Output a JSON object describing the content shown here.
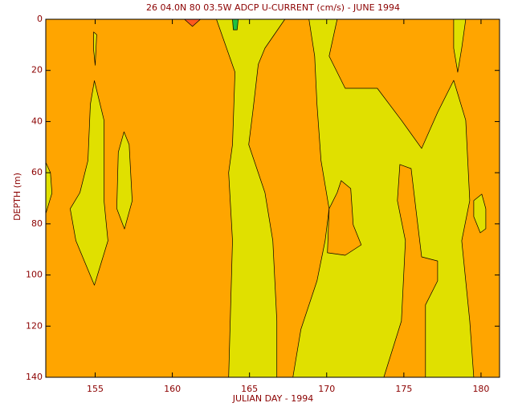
{
  "chart_data": {
    "type": "contour",
    "title": "26 04.0N 80 03.5W ADCP U-CURRENT (cm/s) - JUNE 1994",
    "x_label": "JULIAN DAY - 1994",
    "y_label": "DEPTH (m)",
    "xlim": [
      151.8,
      181.2
    ],
    "ylim": [
      0,
      140
    ],
    "y_inverted": true,
    "xticks": [
      155,
      160,
      165,
      170,
      175,
      180
    ],
    "yticks": [
      0,
      20,
      40,
      60,
      80,
      100,
      120,
      140
    ],
    "background_color": "#ffa500",
    "regions": [
      {
        "color": "#e0e000",
        "x": [
          151.8,
          152.1,
          152.2,
          151.8
        ],
        "y": [
          56,
          60,
          68,
          76
        ]
      },
      {
        "color": "#e0e000",
        "x": [
          154.95,
          155.57,
          155.57,
          155.83,
          154.95,
          153.75,
          153.38,
          154.01,
          154.53,
          154.69
        ],
        "y": [
          24,
          39.5,
          70.9,
          86.6,
          104,
          86.6,
          74.1,
          67.8,
          55.2,
          33.3
        ]
      },
      {
        "color": "#e0e000",
        "x": [
          154.9,
          155.1,
          155.0,
          154.9
        ],
        "y": [
          5,
          6,
          18,
          12
        ]
      },
      {
        "color": "#e0e000",
        "x": [
          156.87,
          157.2,
          157.4,
          156.9,
          156.4,
          156.5
        ],
        "y": [
          44,
          49,
          71,
          82,
          74,
          52
        ]
      },
      {
        "color": "#e0e000",
        "x": [
          162.86,
          167.29,
          166.0,
          165.57,
          165.21,
          164.95,
          166.0,
          166.51,
          166.77,
          166.77,
          163.65,
          163.9,
          163.65,
          163.9,
          164.06
        ],
        "y": [
          0,
          0,
          11.3,
          17.6,
          36.4,
          49,
          67.8,
          86.6,
          118,
          140,
          140,
          86.6,
          60,
          49,
          20.7
        ]
      },
      {
        "color": "#e0e000",
        "x": [
          168.85,
          170.68,
          170.16,
          171.2,
          173.28,
          174.84,
          176.15,
          177.19,
          178.23,
          179.01,
          179.27,
          178.75,
          179.27,
          179.53,
          167.81,
          168.33,
          169.37,
          169.9,
          170.16,
          169.63,
          169.37,
          169.22
        ],
        "y": [
          0,
          0,
          14.4,
          27,
          27,
          39.5,
          50.5,
          36.4,
          23.9,
          39.5,
          70.9,
          86.6,
          118,
          140,
          140,
          121.2,
          102.3,
          86.6,
          74.1,
          55.2,
          33.3,
          14.4
        ]
      },
      {
        "color": "#ffa500",
        "x": [
          174.74,
          175.47,
          175.78,
          176.15,
          177.19,
          177.19,
          176.4,
          176.4,
          173.7,
          174.84,
          175.1,
          174.58
        ],
        "y": [
          56.8,
          58.4,
          74.1,
          92.9,
          94.5,
          102.3,
          111.7,
          140,
          140,
          118,
          86.6,
          70.9
        ]
      },
      {
        "color": "#ffa500",
        "x": [
          170.94,
          171.56,
          171.72,
          172.24,
          171.2,
          170.05,
          170.16,
          170.68
        ],
        "y": [
          63.1,
          66.2,
          80.4,
          88.2,
          92.3,
          91.3,
          74.1,
          67.8
        ]
      },
      {
        "color": "#e0e000",
        "x": [
          179.53,
          180.05,
          180.31,
          180.31,
          179.95,
          179.53
        ],
        "y": [
          70.9,
          68.4,
          74.1,
          81.9,
          83.5,
          77.2
        ]
      },
      {
        "color": "#e0e000",
        "x": [
          178.23,
          179.01,
          178.75,
          178.49,
          178.23
        ],
        "y": [
          0,
          0,
          11.3,
          20.7,
          11.3
        ]
      },
      {
        "color": "#ff5a1e",
        "x": [
          160.78,
          161.82,
          161.3
        ],
        "y": [
          0,
          0,
          2.8
        ]
      },
      {
        "color": "#20c040",
        "x": [
          163.9,
          164.27,
          164.2,
          163.95
        ],
        "y": [
          0,
          0,
          4.1,
          4.1
        ]
      }
    ]
  }
}
